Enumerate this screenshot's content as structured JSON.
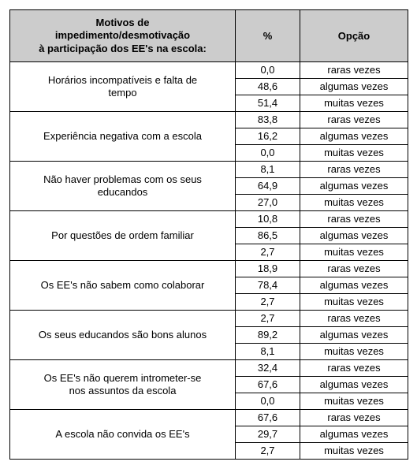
{
  "table": {
    "header_bg": "#cccccc",
    "border_color": "#000000",
    "text_color": "#000000",
    "font_family": "Arial",
    "base_font_size": 13,
    "columns": {
      "motivo": {
        "label_line1": "Motivos de",
        "label_line2": "impedimento/desmotivação",
        "label_line3": "à participação dos EE's na escola:"
      },
      "pct": {
        "label": "%"
      },
      "opt": {
        "label": "Opção"
      }
    },
    "rows": [
      {
        "motivo_l1": "Horários incompatíveis e falta de",
        "motivo_l2": "tempo",
        "r1_pct": "0,0",
        "r1_opt": "raras vezes",
        "r2_pct": "48,6",
        "r2_opt": "algumas vezes",
        "r3_pct": "51,4",
        "r3_opt": "muitas vezes"
      },
      {
        "motivo_l1": "Experiência negativa com a escola",
        "motivo_l2": "",
        "r1_pct": "83,8",
        "r1_opt": "raras vezes",
        "r2_pct": "16,2",
        "r2_opt": "algumas vezes",
        "r3_pct": "0,0",
        "r3_opt": "muitas vezes"
      },
      {
        "motivo_l1": "Não haver problemas com os seus",
        "motivo_l2": "educandos",
        "r1_pct": "8,1",
        "r1_opt": "raras vezes",
        "r2_pct": "64,9",
        "r2_opt": "algumas vezes",
        "r3_pct": "27,0",
        "r3_opt": "muitas vezes"
      },
      {
        "motivo_l1": "Por questões de ordem familiar",
        "motivo_l2": "",
        "r1_pct": "10,8",
        "r1_opt": "raras vezes",
        "r2_pct": "86,5",
        "r2_opt": "algumas vezes",
        "r3_pct": "2,7",
        "r3_opt": "muitas vezes"
      },
      {
        "motivo_l1": "Os EE's não sabem como colaborar",
        "motivo_l2": "",
        "r1_pct": "18,9",
        "r1_opt": "raras vezes",
        "r2_pct": "78,4",
        "r2_opt": "algumas vezes",
        "r3_pct": "2,7",
        "r3_opt": "muitas vezes"
      },
      {
        "motivo_l1": "Os seus educandos são bons alunos",
        "motivo_l2": "",
        "r1_pct": "2,7",
        "r1_opt": "raras vezes",
        "r2_pct": "89,2",
        "r2_opt": "algumas vezes",
        "r3_pct": "8,1",
        "r3_opt": "muitas vezes"
      },
      {
        "motivo_l1": "Os EE's não querem intrometer-se",
        "motivo_l2": "nos assuntos da escola",
        "r1_pct": "32,4",
        "r1_opt": "raras vezes",
        "r2_pct": "67,6",
        "r2_opt": "algumas vezes",
        "r3_pct": "0,0",
        "r3_opt": "muitas vezes"
      },
      {
        "motivo_l1": "A escola não convida os EE's",
        "motivo_l2": "",
        "r1_pct": "67,6",
        "r1_opt": "raras vezes",
        "r2_pct": "29,7",
        "r2_opt": "algumas vezes",
        "r3_pct": "2,7",
        "r3_opt": "muitas vezes"
      }
    ]
  }
}
